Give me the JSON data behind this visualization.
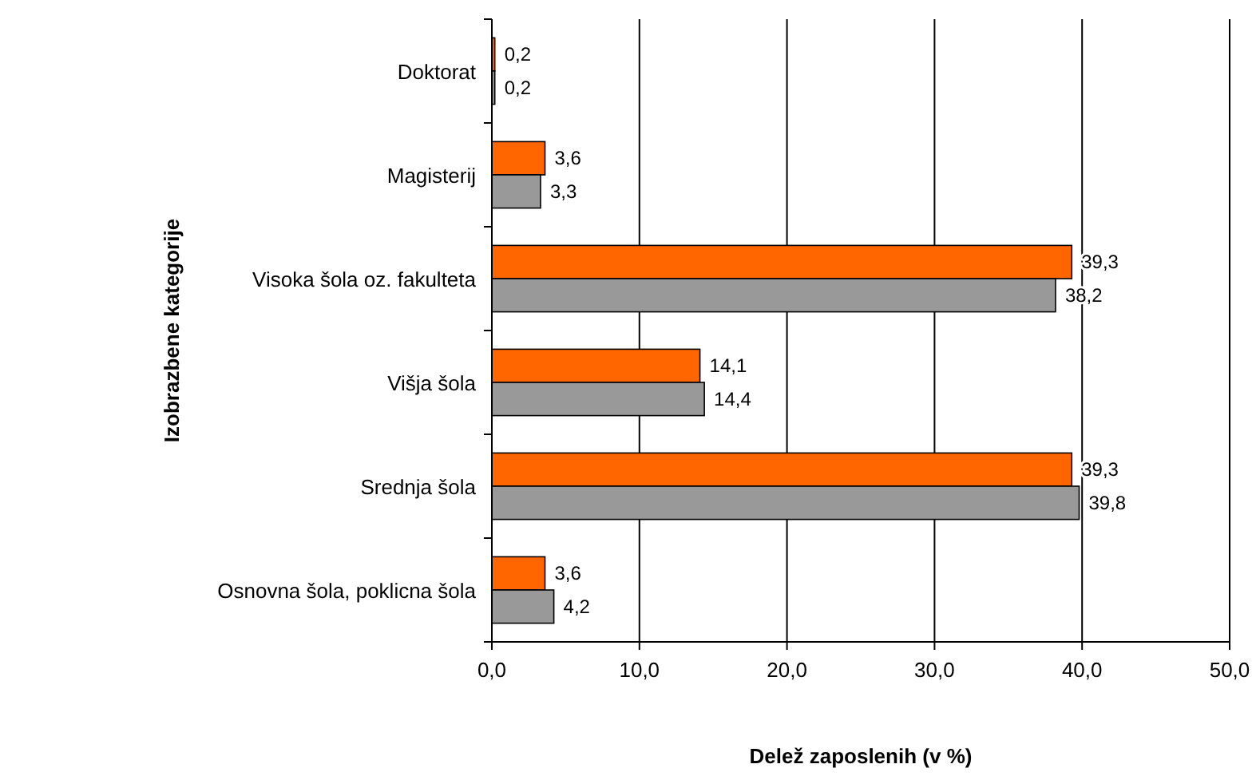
{
  "chart_data": {
    "type": "bar",
    "orientation": "horizontal",
    "xlabel": "Delež zaposlenih (v %)",
    "ylabel": "Izobrazbene kategorije",
    "categories": [
      "Doktorat",
      "Magisterij",
      "Visoka šola oz. fakulteta",
      "Višja šola",
      "Srednja šola",
      "Osnovna šola, poklicna šola"
    ],
    "series": [
      {
        "color": "#ff6600",
        "values": [
          0.2,
          3.6,
          39.3,
          14.1,
          39.3,
          3.6
        ],
        "value_labels": [
          "0,2",
          "3,6",
          "39,3",
          "14,1",
          "39,3",
          "3,6"
        ]
      },
      {
        "color": "#999999",
        "values": [
          0.2,
          3.3,
          38.2,
          14.4,
          39.8,
          4.2
        ],
        "value_labels": [
          "0,2",
          "3,3",
          "38,2",
          "14,4",
          "39,8",
          "4,2"
        ]
      }
    ],
    "xlim": [
      0,
      50
    ],
    "xticks": [
      {
        "value": 0,
        "label": "0,0"
      },
      {
        "value": 10,
        "label": "10,0"
      },
      {
        "value": 20,
        "label": "20,0"
      },
      {
        "value": 30,
        "label": "30,0"
      },
      {
        "value": 40,
        "label": "40,0"
      },
      {
        "value": 50,
        "label": "50,0"
      }
    ],
    "grid": "x"
  }
}
